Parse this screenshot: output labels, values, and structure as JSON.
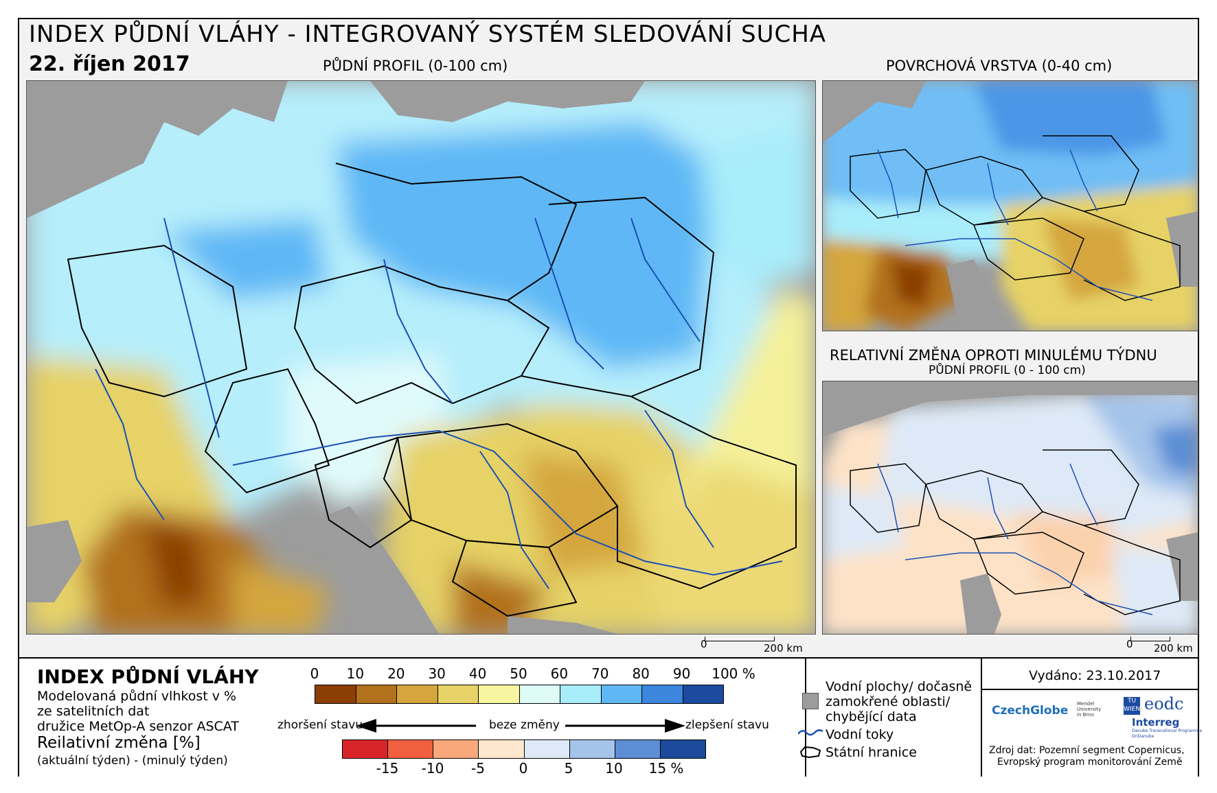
{
  "header": {
    "title": "INDEX PŮDNÍ VLÁHY - INTEGROVANÝ SYSTÉM SLEDOVÁNÍ SUCHA",
    "date": "22. říjen 2017"
  },
  "maps": {
    "main_label": "PŮDNÍ PROFIL (0-100 cm)",
    "surface_label": "POVRCHOVÁ VRSTVA (0-40 cm)",
    "change_label": "RELATIVNÍ ZMĚNA OPROTI MINULÉMU TÝDNU",
    "change_sublabel": "PŮDNÍ PROFIL (0 - 100 cm)",
    "scale_zero": "0",
    "scale_max": "200 km"
  },
  "legend": {
    "title": "INDEX PŮDNÍ VLÁHY",
    "desc_line1": "Modelovaná půdní vlhkost v %",
    "desc_line2": "ze satelitních dat",
    "desc_line3": "družice MetOp-A senzor ASCAT",
    "change_title": "Reilativní změna [%]",
    "change_desc": "(aktuální týden) - (minulý týden)",
    "moisture_ticks": [
      "0",
      "10",
      "20",
      "30",
      "40",
      "50",
      "60",
      "70",
      "80",
      "90",
      "100 %"
    ],
    "moisture_colors": [
      "#8b3f05",
      "#b2711c",
      "#d4a63d",
      "#e6d266",
      "#f7f5a0",
      "#dffbf6",
      "#a9ecfa",
      "#5fb8f5",
      "#3c86dd",
      "#1c4aa1"
    ],
    "change_ticks": [
      "-15",
      "-10",
      "-5",
      "0",
      "5",
      "10",
      "15 %"
    ],
    "change_colors": [
      "#d9252a",
      "#f0603f",
      "#f9a87c",
      "#fde7cf",
      "#dde9f6",
      "#a5c4ea",
      "#5b8ed4",
      "#1c4a9a"
    ],
    "worse": "zhoršení stavu",
    "nochange": "beze změny",
    "better": "zlepšení stavu",
    "water_line1": "Vodní plochy/ dočasně",
    "water_line2": "zamokřené oblasti/",
    "water_line3": "chybějící data",
    "rivers": "Vodní toky",
    "borders": "Státní hranice",
    "issued": "Vydáno: 23.10.2017",
    "source_line1": "Zdroj dat: Pozemní segment Copernicus,",
    "source_line2": "Evropský program monitorování Země"
  },
  "logos": {
    "czechglobe": "CzechGlobe",
    "mendel": "Mendel University in Brno",
    "tuwien": "TU WIEN",
    "eodc": "eodc",
    "interreg": "Interreg",
    "interreg_sub": "Danube Transnational Programme",
    "dridanube": "DriDanube"
  },
  "colors": {
    "water_grey": "#9c9c9c",
    "river_blue": "#1a4fb5"
  }
}
